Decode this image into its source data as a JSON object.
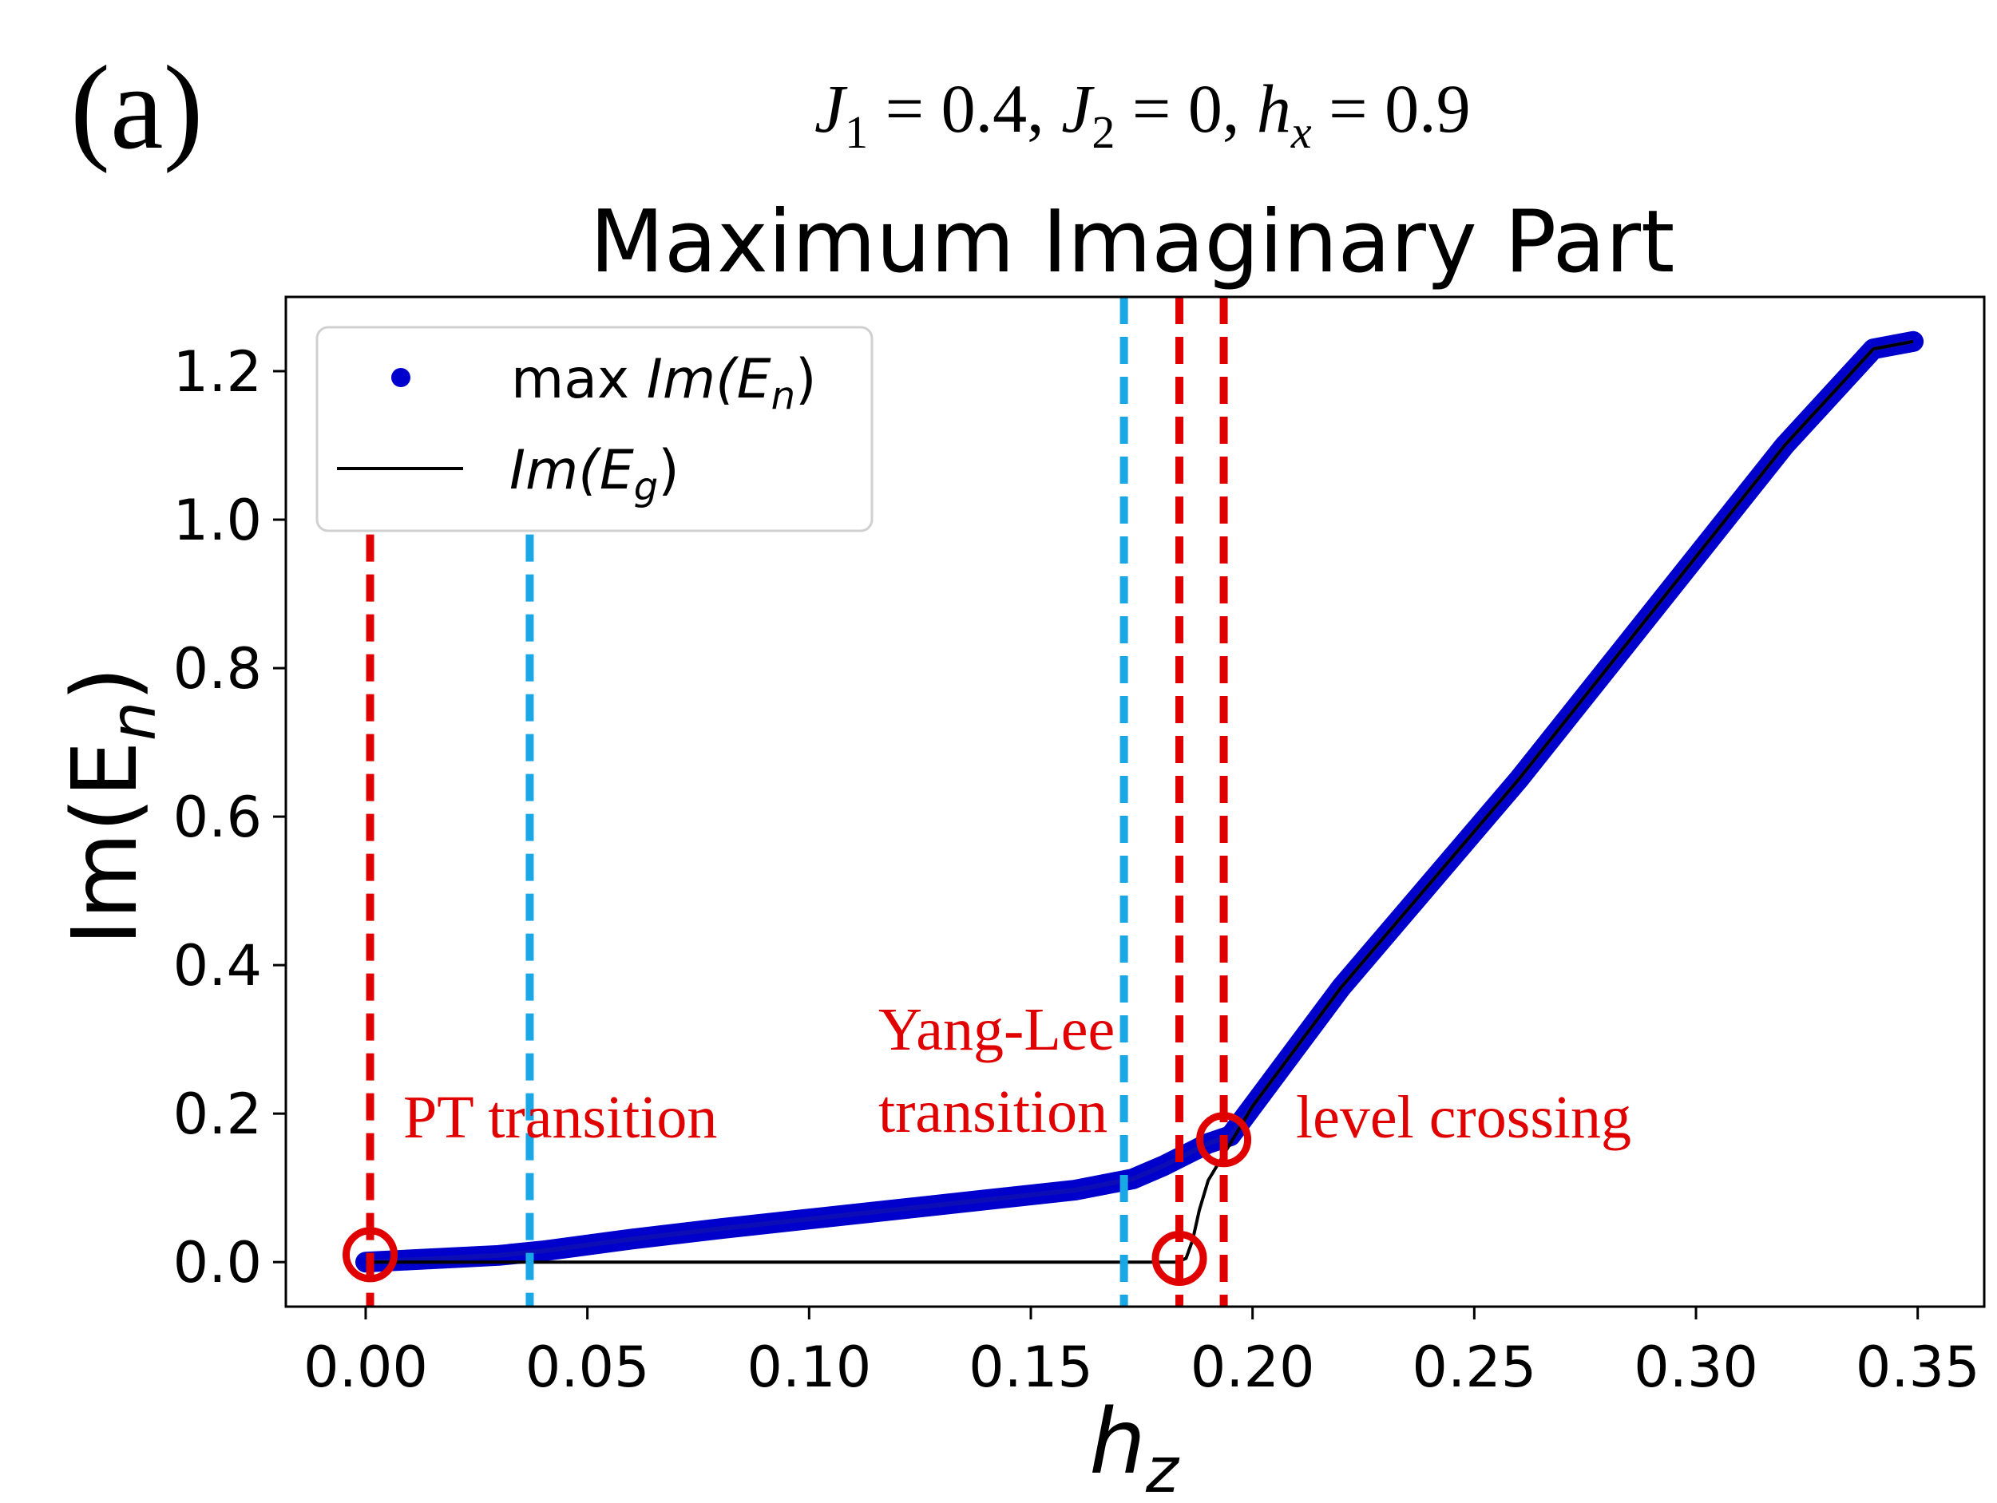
{
  "panel_label": "(a)",
  "parameters": {
    "j1_symbol": "J",
    "j1_sub": "1",
    "j1_value": " = 0.4, ",
    "j2_symbol": "J",
    "j2_sub": "2",
    "j2_value": " = 0, ",
    "hx_symbol": "h",
    "hx_sub": "x",
    "hx_value": " = 0.9"
  },
  "chart_data": {
    "type": "line",
    "title": "Maximum Imaginary Part",
    "xlabel_main": "h",
    "xlabel_sub": "z",
    "ylabel_main": "Im(E",
    "ylabel_sub": "n",
    "ylabel_close": ")",
    "xlim": [
      -0.018,
      0.365
    ],
    "ylim": [
      -0.06,
      1.3
    ],
    "x_ticks": [
      0.0,
      0.05,
      0.1,
      0.15,
      0.2,
      0.25,
      0.3,
      0.35
    ],
    "x_tick_labels": [
      "0.00",
      "0.05",
      "0.10",
      "0.15",
      "0.20",
      "0.25",
      "0.30",
      "0.35"
    ],
    "y_ticks": [
      0.0,
      0.2,
      0.4,
      0.6,
      0.8,
      1.0,
      1.2
    ],
    "y_tick_labels": [
      "0.0",
      "0.2",
      "0.4",
      "0.6",
      "0.8",
      "1.0",
      "1.2"
    ],
    "legend": {
      "placement": "upper-left",
      "entries": [
        {
          "prefix": "max ",
          "main": "Im(E",
          "sub": "n",
          "close": ")",
          "marker": "dot",
          "color": "#0000cc"
        },
        {
          "prefix": "",
          "main": "Im(E",
          "sub": "g",
          "close": ")",
          "marker": "line",
          "color": "#000000"
        }
      ]
    },
    "series": [
      {
        "name": "max Im(E_n)",
        "color": "#0000cc",
        "x": [
          0.0,
          0.01,
          0.02,
          0.03,
          0.04,
          0.06,
          0.08,
          0.1,
          0.12,
          0.14,
          0.16,
          0.173,
          0.18,
          0.185,
          0.19,
          0.195,
          0.2,
          0.21,
          0.22,
          0.24,
          0.26,
          0.28,
          0.3,
          0.32,
          0.34,
          0.349
        ],
        "y": [
          0.0,
          0.003,
          0.006,
          0.009,
          0.015,
          0.031,
          0.045,
          0.058,
          0.071,
          0.084,
          0.097,
          0.112,
          0.13,
          0.145,
          0.16,
          0.17,
          0.21,
          0.29,
          0.37,
          0.51,
          0.65,
          0.8,
          0.95,
          1.1,
          1.23,
          1.24
        ]
      },
      {
        "name": "Im(E_g)",
        "color": "#000000",
        "x": [
          0.0,
          0.05,
          0.1,
          0.15,
          0.183,
          0.185,
          0.1865,
          0.188,
          0.19,
          0.193,
          0.196,
          0.2,
          0.21,
          0.22,
          0.24,
          0.26,
          0.28,
          0.3,
          0.32,
          0.34,
          0.349
        ],
        "y": [
          0.0,
          0.0,
          0.0,
          0.0,
          0.0,
          0.005,
          0.03,
          0.07,
          0.11,
          0.14,
          0.17,
          0.21,
          0.29,
          0.37,
          0.51,
          0.65,
          0.8,
          0.95,
          1.1,
          1.23,
          1.24
        ]
      }
    ],
    "vertical_lines": [
      {
        "x": 0.001,
        "color": "#e00000",
        "style": "dashed",
        "kind": "pt"
      },
      {
        "x": 0.037,
        "color": "#1aa7e6",
        "style": "dashed",
        "kind": "pt"
      },
      {
        "x": 0.171,
        "color": "#1aa7e6",
        "style": "dashed",
        "kind": "yang-lee"
      },
      {
        "x": 0.1835,
        "color": "#e00000",
        "style": "dashed",
        "kind": "yang-lee"
      },
      {
        "x": 0.1935,
        "color": "#e00000",
        "style": "dashed",
        "kind": "level-crossing"
      }
    ],
    "circles": [
      {
        "x": 0.001,
        "y": 0.01,
        "color": "#e00000"
      },
      {
        "x": 0.1835,
        "y": 0.005,
        "color": "#e00000"
      },
      {
        "x": 0.1935,
        "y": 0.165,
        "color": "#e00000"
      }
    ],
    "annotations": [
      {
        "id": "pt",
        "lines": [
          "PT transition"
        ],
        "color": "#e00000"
      },
      {
        "id": "yang-lee",
        "lines": [
          "Yang-Lee",
          "transition"
        ],
        "color": "#e00000"
      },
      {
        "id": "level-crossing",
        "lines": [
          "level crossing"
        ],
        "color": "#e00000"
      }
    ]
  }
}
